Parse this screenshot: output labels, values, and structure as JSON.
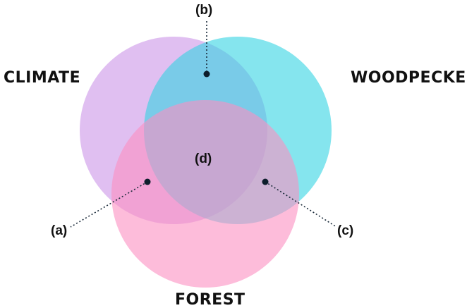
{
  "diagram": {
    "sets": {
      "climate": {
        "label": "CLIMATE",
        "color": "#C78BE5"
      },
      "woodpecker": {
        "label": "WOODPECKER",
        "color": "#34D3E3"
      },
      "forest": {
        "label": "FOREST",
        "color": "#FC8FC1"
      }
    },
    "regions": {
      "a": "(a)",
      "b": "(b)",
      "c": "(c)",
      "d": "(d)"
    }
  }
}
